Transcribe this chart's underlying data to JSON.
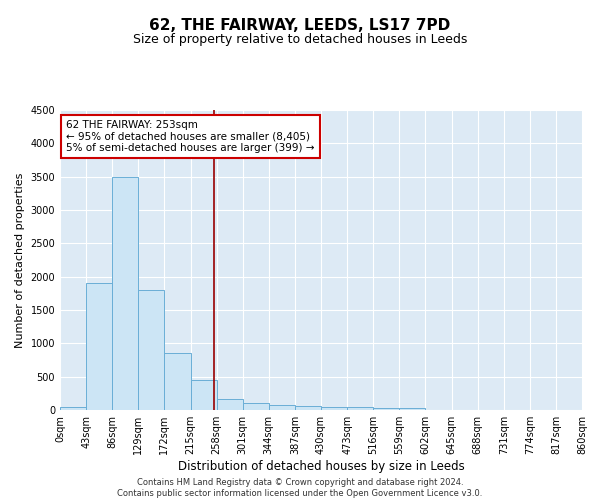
{
  "title": "62, THE FAIRWAY, LEEDS, LS17 7PD",
  "subtitle": "Size of property relative to detached houses in Leeds",
  "xlabel": "Distribution of detached houses by size in Leeds",
  "ylabel": "Number of detached properties",
  "bin_edges": [
    0,
    43,
    86,
    129,
    172,
    215,
    258,
    301,
    344,
    387,
    430,
    473,
    516,
    559,
    602,
    645,
    688,
    731,
    774,
    817,
    860
  ],
  "bar_heights": [
    50,
    1900,
    3500,
    1800,
    850,
    450,
    160,
    110,
    75,
    60,
    50,
    40,
    35,
    30,
    0,
    0,
    0,
    0,
    0,
    0
  ],
  "bar_facecolor": "#cce5f5",
  "bar_edgecolor": "#6aaed6",
  "property_sqm": 253,
  "vline_color": "#990000",
  "annotation_text": "62 THE FAIRWAY: 253sqm\n← 95% of detached houses are smaller (8,405)\n5% of semi-detached houses are larger (399) →",
  "annotation_boxcolor": "white",
  "annotation_edgecolor": "#cc0000",
  "ylim": [
    0,
    4500
  ],
  "yticks": [
    0,
    500,
    1000,
    1500,
    2000,
    2500,
    3000,
    3500,
    4000,
    4500
  ],
  "background_color": "#ddeaf5",
  "footer_line1": "Contains HM Land Registry data © Crown copyright and database right 2024.",
  "footer_line2": "Contains public sector information licensed under the Open Government Licence v3.0.",
  "title_fontsize": 11,
  "subtitle_fontsize": 9,
  "xlabel_fontsize": 8.5,
  "ylabel_fontsize": 8,
  "tick_fontsize": 7,
  "annotation_fontsize": 7.5,
  "footer_fontsize": 6
}
